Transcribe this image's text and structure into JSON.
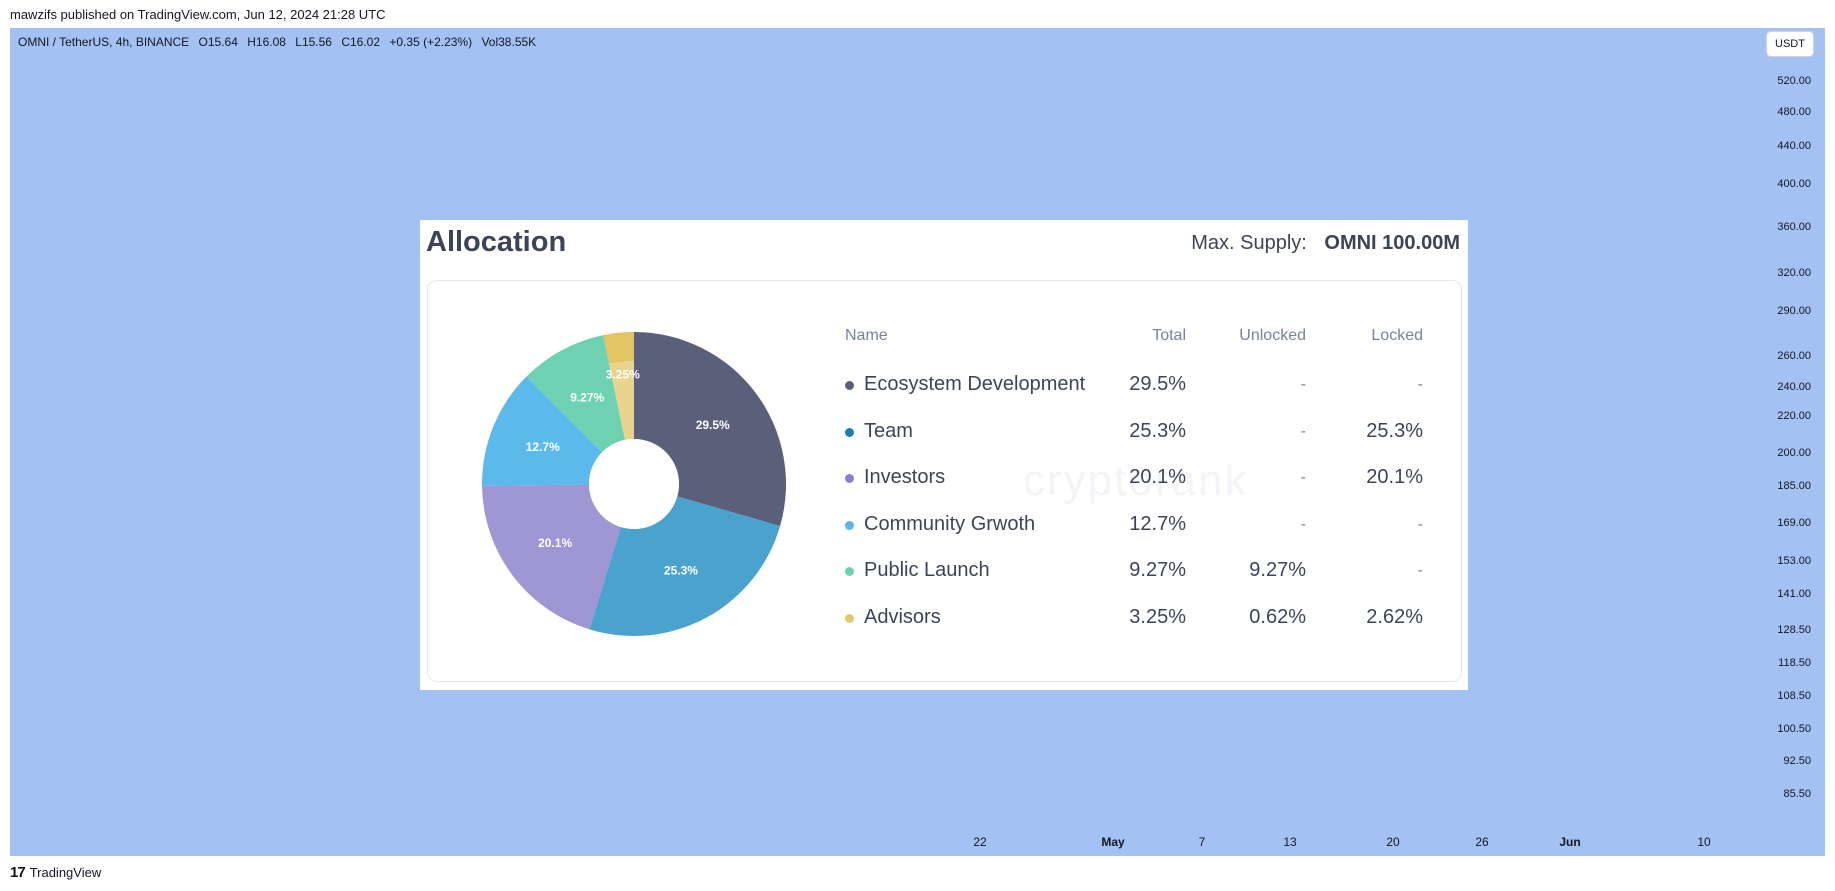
{
  "publisher_line": "mawzifs published on TradingView.com, Jun 12, 2024 21:28 UTC",
  "symbol": {
    "name": "OMNI / TetherUS, 4h, BINANCE",
    "open": "O15.64",
    "high": "H16.08",
    "low": "L15.56",
    "close": "C16.02",
    "change": "+0.35 (+2.23%)",
    "volume": "Vol38.55K"
  },
  "currency_button": "USDT",
  "price_ticks": [
    "520.00",
    "480.00",
    "440.00",
    "400.00",
    "360.00",
    "320.00",
    "290.00",
    "260.00",
    "240.00",
    "220.00",
    "200.00",
    "185.00",
    "169.00",
    "153.00",
    "141.00",
    "128.50",
    "118.50",
    "108.50",
    "100.50",
    "92.50",
    "85.50"
  ],
  "time_ticks": [
    {
      "label": "22",
      "bold": false
    },
    {
      "label": "May",
      "bold": true
    },
    {
      "label": "7",
      "bold": false
    },
    {
      "label": "13",
      "bold": false
    },
    {
      "label": "20",
      "bold": false
    },
    {
      "label": "26",
      "bold": false
    },
    {
      "label": "Jun",
      "bold": true
    },
    {
      "label": "10",
      "bold": false
    }
  ],
  "allocation": {
    "title": "Allocation",
    "max_supply_label": "Max. Supply:",
    "max_supply_value": "OMNI 100.00M",
    "watermark": "cryptorank",
    "headers": {
      "name": "Name",
      "total": "Total",
      "unlocked": "Unlocked",
      "locked": "Locked"
    },
    "rows": [
      {
        "name": "Ecosystem Development",
        "total": "29.5%",
        "unlocked": "-",
        "locked": "-",
        "color": "#5a607a"
      },
      {
        "name": "Team",
        "total": "25.3%",
        "unlocked": "-",
        "locked": "25.3%",
        "color": "#1a7fb0"
      },
      {
        "name": "Investors",
        "total": "20.1%",
        "unlocked": "-",
        "locked": "20.1%",
        "color": "#8b7fd0"
      },
      {
        "name": "Community Grwoth",
        "total": "12.7%",
        "unlocked": "-",
        "locked": "-",
        "color": "#5ab7ec"
      },
      {
        "name": "Public Launch",
        "total": "9.27%",
        "unlocked": "9.27%",
        "locked": "-",
        "color": "#6fd1b0"
      },
      {
        "name": "Advisors",
        "total": "3.25%",
        "unlocked": "0.62%",
        "locked": "2.62%",
        "color": "#e4c96a"
      }
    ]
  },
  "chart_data": {
    "type": "pie",
    "title": "Allocation",
    "slices": [
      {
        "label": "Ecosystem Development",
        "value": 29.5,
        "display": "29.5%",
        "color": "#5a607a"
      },
      {
        "label": "Team",
        "value": 25.3,
        "display": "25.3%",
        "color": "#4aa3cc"
      },
      {
        "label": "Investors",
        "value": 20.1,
        "display": "20.1%",
        "color": "#9f96d4"
      },
      {
        "label": "Community Grwoth",
        "value": 12.7,
        "display": "12.7%",
        "color": "#5cb9ec"
      },
      {
        "label": "Public Launch",
        "value": 9.27,
        "display": "9.27%",
        "color": "#6dd1b2"
      },
      {
        "label": "Advisors",
        "value": 3.25,
        "display": "3.25%",
        "color": "#e8d48e",
        "inner_color": "#e2c462",
        "inner_fraction": 0.19
      }
    ]
  },
  "footer": {
    "logo": "17",
    "brand": "TradingView"
  }
}
